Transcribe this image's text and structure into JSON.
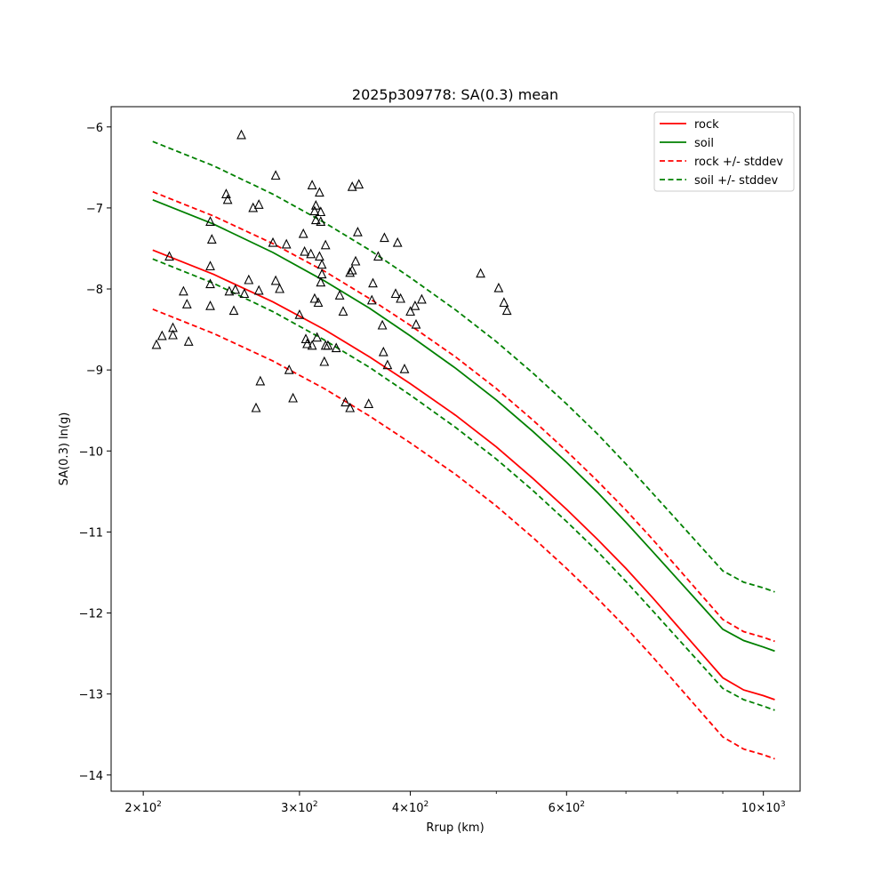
{
  "chart_data": {
    "type": "line",
    "title": "2025p309778: SA(0.3) mean",
    "xlabel": "Rrup (km)",
    "ylabel": "SA(0.3) ln(g)",
    "x_scale": "log",
    "xlim": [
      184,
      1100
    ],
    "ylim": [
      -14.2,
      -5.75
    ],
    "grid": false,
    "legend_position": "top-right",
    "x_ticks": [
      {
        "value": 200,
        "base": "2",
        "exp": "2"
      },
      {
        "value": 300,
        "base": "3",
        "exp": "2"
      },
      {
        "value": 400,
        "base": "4",
        "exp": "2"
      },
      {
        "value": 600,
        "base": "6",
        "exp": "2"
      },
      {
        "value": 1000,
        "base": "10",
        "exp": "3"
      }
    ],
    "x_minor_ticks": [
      500,
      700,
      800,
      900
    ],
    "y_ticks": [
      {
        "value": -6,
        "label": "−6"
      },
      {
        "value": -7,
        "label": "−7"
      },
      {
        "value": -8,
        "label": "−8"
      },
      {
        "value": -9,
        "label": "−9"
      },
      {
        "value": -10,
        "label": "−10"
      },
      {
        "value": -11,
        "label": "−11"
      },
      {
        "value": -12,
        "label": "−12"
      },
      {
        "value": -13,
        "label": "−13"
      },
      {
        "value": -14,
        "label": "−14"
      }
    ],
    "x": [
      205,
      240,
      280,
      320,
      360,
      400,
      450,
      500,
      550,
      600,
      650,
      700,
      750,
      800,
      850,
      900,
      950,
      1000,
      1030
    ],
    "series": [
      {
        "name": "rock",
        "color": "#ff0000",
        "dash": false,
        "values": [
          -7.52,
          -7.82,
          -8.16,
          -8.5,
          -8.84,
          -9.17,
          -9.56,
          -9.95,
          -10.34,
          -10.72,
          -11.09,
          -11.45,
          -11.81,
          -12.16,
          -12.49,
          -12.8,
          -12.95,
          -13.02,
          -13.07
        ]
      },
      {
        "name": "soil",
        "color": "#008000",
        "dash": false,
        "values": [
          -6.9,
          -7.2,
          -7.55,
          -7.9,
          -8.24,
          -8.58,
          -8.98,
          -9.37,
          -9.76,
          -10.14,
          -10.51,
          -10.88,
          -11.24,
          -11.58,
          -11.9,
          -12.2,
          -12.34,
          -12.42,
          -12.47
        ]
      },
      {
        "name": "rock +/- stddev",
        "color": "#ff0000",
        "dash": true,
        "values": [
          -6.8,
          -7.1,
          -7.44,
          -7.78,
          -8.12,
          -8.45,
          -8.84,
          -9.23,
          -9.62,
          -10.0,
          -10.37,
          -10.73,
          -11.09,
          -11.44,
          -11.77,
          -12.08,
          -12.23,
          -12.3,
          -12.35
        ]
      },
      {
        "name": "",
        "color": "#ff0000",
        "dash": true,
        "values": [
          -8.25,
          -8.55,
          -8.89,
          -9.23,
          -9.57,
          -9.9,
          -10.29,
          -10.68,
          -11.07,
          -11.45,
          -11.82,
          -12.18,
          -12.54,
          -12.89,
          -13.22,
          -13.53,
          -13.68,
          -13.75,
          -13.8
        ]
      },
      {
        "name": "soil +/- stddev",
        "color": "#008000",
        "dash": true,
        "values": [
          -6.18,
          -6.48,
          -6.83,
          -7.18,
          -7.52,
          -7.86,
          -8.26,
          -8.65,
          -9.04,
          -9.42,
          -9.79,
          -10.16,
          -10.52,
          -10.86,
          -11.18,
          -11.48,
          -11.62,
          -11.69,
          -11.74
        ]
      },
      {
        "name": "",
        "color": "#008000",
        "dash": true,
        "values": [
          -7.63,
          -7.93,
          -8.28,
          -8.63,
          -8.97,
          -9.31,
          -9.71,
          -10.1,
          -10.49,
          -10.87,
          -11.24,
          -11.61,
          -11.97,
          -12.31,
          -12.63,
          -12.93,
          -13.07,
          -13.15,
          -13.2
        ]
      }
    ],
    "observations": {
      "marker": "triangle",
      "points": [
        [
          207,
          -8.69
        ],
        [
          210,
          -8.58
        ],
        [
          214,
          -7.6
        ],
        [
          216,
          -8.48
        ],
        [
          216,
          -8.57
        ],
        [
          222,
          -8.03
        ],
        [
          224,
          -8.19
        ],
        [
          225,
          -8.65
        ],
        [
          238,
          -7.17
        ],
        [
          238,
          -7.72
        ],
        [
          238,
          -7.94
        ],
        [
          238,
          -8.21
        ],
        [
          239,
          -7.39
        ],
        [
          248,
          -6.83
        ],
        [
          249,
          -6.9
        ],
        [
          250,
          -8.03
        ],
        [
          253,
          -8.27
        ],
        [
          254,
          -8.01
        ],
        [
          258,
          -6.1
        ],
        [
          260,
          -8.06
        ],
        [
          263,
          -7.89
        ],
        [
          266,
          -7.0
        ],
        [
          270,
          -6.96
        ],
        [
          270,
          -8.02
        ],
        [
          271,
          -9.14
        ],
        [
          268,
          -9.47
        ],
        [
          280,
          -7.43
        ],
        [
          282,
          -6.6
        ],
        [
          282,
          -7.9
        ],
        [
          285,
          -8.0
        ],
        [
          290,
          -7.45
        ],
        [
          292,
          -9.0
        ],
        [
          295,
          -9.35
        ],
        [
          300,
          -8.32
        ],
        [
          303,
          -7.32
        ],
        [
          304,
          -7.54
        ],
        [
          305,
          -8.62
        ],
        [
          306,
          -8.68
        ],
        [
          309,
          -7.57
        ],
        [
          310,
          -8.7
        ],
        [
          310,
          -6.72
        ],
        [
          312,
          -7.04
        ],
        [
          312,
          -8.12
        ],
        [
          313,
          -7.15
        ],
        [
          313,
          -6.97
        ],
        [
          314,
          -8.6
        ],
        [
          315,
          -8.17
        ],
        [
          316,
          -6.81
        ],
        [
          316,
          -7.6
        ],
        [
          317,
          -7.92
        ],
        [
          317,
          -7.05
        ],
        [
          317,
          -7.17
        ],
        [
          318,
          -7.82
        ],
        [
          318,
          -7.7
        ],
        [
          320,
          -8.9
        ],
        [
          321,
          -7.46
        ],
        [
          321,
          -8.7
        ],
        [
          323,
          -8.7
        ],
        [
          330,
          -8.73
        ],
        [
          333,
          -8.08
        ],
        [
          336,
          -8.28
        ],
        [
          338,
          -9.4
        ],
        [
          342,
          -7.8
        ],
        [
          344,
          -7.77
        ],
        [
          344,
          -6.74
        ],
        [
          342,
          -9.47
        ],
        [
          347,
          -7.66
        ],
        [
          349,
          -7.3
        ],
        [
          350,
          -6.71
        ],
        [
          359,
          -9.42
        ],
        [
          362,
          -8.14
        ],
        [
          363,
          -7.93
        ],
        [
          368,
          -7.6
        ],
        [
          372,
          -8.45
        ],
        [
          373,
          -8.78
        ],
        [
          374,
          -7.37
        ],
        [
          377,
          -8.94
        ],
        [
          385,
          -8.06
        ],
        [
          387,
          -7.43
        ],
        [
          390,
          -8.12
        ],
        [
          394,
          -8.99
        ],
        [
          400,
          -8.28
        ],
        [
          405,
          -8.21
        ],
        [
          406,
          -8.44
        ],
        [
          412,
          -8.13
        ],
        [
          480,
          -7.81
        ],
        [
          503,
          -7.99
        ],
        [
          510,
          -8.17
        ],
        [
          514,
          -8.27
        ]
      ]
    }
  }
}
